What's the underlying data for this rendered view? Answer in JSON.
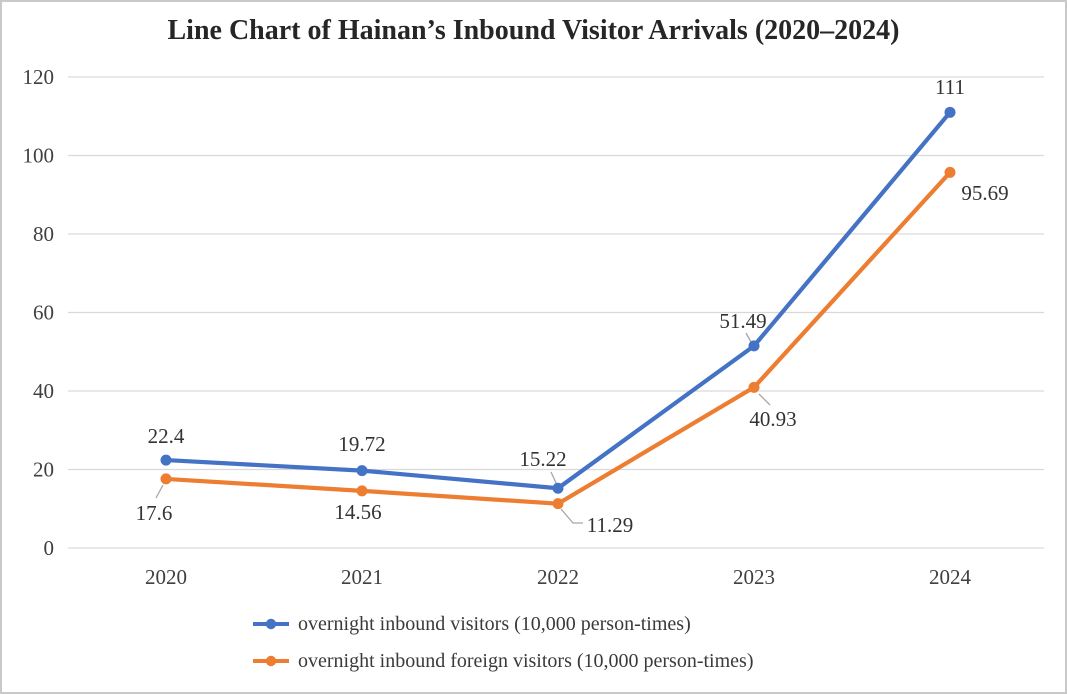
{
  "chart_data": {
    "type": "line",
    "title": "Line Chart of Hainan’s Inbound Visitor Arrivals (2020–2024)",
    "categories": [
      "2020",
      "2021",
      "2022",
      "2023",
      "2024"
    ],
    "series": [
      {
        "name": "overnight inbound visitors (10,000 person-times)",
        "color": "#4472C4",
        "values": [
          22.4,
          19.72,
          15.22,
          51.49,
          111
        ]
      },
      {
        "name": "overnight inbound foreign visitors (10,000 person-times)",
        "color": "#ED7D31",
        "values": [
          17.6,
          14.56,
          11.29,
          40.93,
          95.69
        ]
      }
    ],
    "xlabel": "",
    "ylabel": "",
    "ylim": [
      0,
      120
    ],
    "yticks": [
      0,
      20,
      40,
      60,
      80,
      100,
      120
    ],
    "grid": "horizontal",
    "legend_position": "bottom",
    "colors": {
      "gridline": "#D9D9D9",
      "tick_text": "#404040",
      "data_label": "#333333",
      "leader_line": "#A6A6A6",
      "title_text": "#262626",
      "border": "#C9C9C9",
      "background": "#FFFFFF"
    }
  }
}
